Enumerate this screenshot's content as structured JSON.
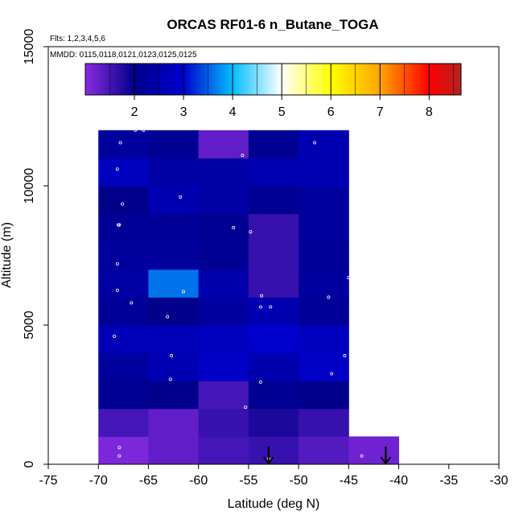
{
  "chart_data": {
    "type": "heatmap",
    "title": "ORCAS RF01-6 n_Butane_TOGA",
    "subtitle_lines": [
      "Flts: 1,2,3,4,5,6",
      "MMDD: 0115,0118,0121,0123,0125,0125"
    ],
    "xlabel": "Latitude (deg N)",
    "ylabel": "Altitude (m)",
    "xlim": [
      -75,
      -30
    ],
    "ylim": [
      0,
      15000
    ],
    "xticks": [
      -75,
      -70,
      -65,
      -60,
      -55,
      -50,
      -45,
      -40,
      -35,
      -30
    ],
    "yticks": [
      0,
      5000,
      10000,
      15000
    ],
    "grid": false,
    "colorbar": {
      "range": [
        1.0,
        8.65
      ],
      "ticks": [
        2,
        3,
        4,
        5,
        6,
        7,
        8
      ],
      "segment_values": [
        1.0,
        2.0,
        3.0,
        4.0,
        5.0,
        6.0,
        7.0,
        8.0,
        8.65
      ],
      "segment_colors": [
        "#8a2be2",
        "#00008b",
        "#0000cd",
        "#00bfff",
        "#ffffff",
        "#ffff00",
        "#ffa500",
        "#ff0000",
        "#b22222"
      ]
    },
    "bins": {
      "lat_edges": [
        -70,
        -65,
        -60,
        -55,
        -50,
        -45,
        -40
      ],
      "alt_edges": [
        0,
        1000,
        2000,
        3000,
        4000,
        5000,
        6000,
        7000,
        8000,
        9000,
        10000,
        11000,
        12000
      ],
      "values": [
        [
          1.1,
          1.3,
          1.5,
          1.6,
          1.4,
          1.2
        ],
        [
          1.5,
          1.3,
          1.6,
          1.8,
          1.6,
          null
        ],
        [
          2.1,
          2.0,
          1.5,
          2.1,
          2.0,
          null
        ],
        [
          2.3,
          2.6,
          2.9,
          2.5,
          2.9,
          null
        ],
        [
          2.7,
          2.7,
          2.8,
          3.0,
          2.8,
          null
        ],
        [
          2.2,
          2.0,
          2.3,
          2.6,
          2.2,
          null
        ],
        [
          2.4,
          3.6,
          2.5,
          1.6,
          2.3,
          null
        ],
        [
          2.3,
          2.3,
          2.1,
          1.6,
          2.2,
          null
        ],
        [
          2.2,
          2.2,
          2.1,
          1.6,
          2.3,
          null
        ],
        [
          2.0,
          2.6,
          2.4,
          2.1,
          2.3,
          null
        ],
        [
          2.8,
          2.4,
          2.4,
          2.6,
          2.6,
          null
        ],
        [
          2.3,
          2.1,
          1.3,
          2.1,
          2.6,
          null
        ]
      ]
    },
    "arrows_at_lat": [
      -53.0,
      -41.3
    ],
    "sample_points": [
      {
        "lat": -67.9,
        "alt": 300
      },
      {
        "lat": -67.9,
        "alt": 600
      },
      {
        "lat": -53.0,
        "alt": 200
      },
      {
        "lat": -43.7,
        "alt": 300
      },
      {
        "lat": -55.3,
        "alt": 2050
      },
      {
        "lat": -62.8,
        "alt": 3050
      },
      {
        "lat": -53.8,
        "alt": 2950
      },
      {
        "lat": -46.7,
        "alt": 3250
      },
      {
        "lat": -62.7,
        "alt": 3900
      },
      {
        "lat": -45.4,
        "alt": 3900
      },
      {
        "lat": -68.4,
        "alt": 4600
      },
      {
        "lat": -63.1,
        "alt": 5300
      },
      {
        "lat": -53.8,
        "alt": 5650
      },
      {
        "lat": -52.8,
        "alt": 5650
      },
      {
        "lat": -53.7,
        "alt": 6050
      },
      {
        "lat": -66.7,
        "alt": 5800
      },
      {
        "lat": -61.5,
        "alt": 6200
      },
      {
        "lat": -68.1,
        "alt": 6250
      },
      {
        "lat": -47.0,
        "alt": 6000
      },
      {
        "lat": -45.0,
        "alt": 6700
      },
      {
        "lat": -68.1,
        "alt": 7200
      },
      {
        "lat": -68.0,
        "alt": 8600
      },
      {
        "lat": -67.9,
        "alt": 8600
      },
      {
        "lat": -56.5,
        "alt": 8500
      },
      {
        "lat": -54.8,
        "alt": 8350
      },
      {
        "lat": -67.6,
        "alt": 9350
      },
      {
        "lat": -61.8,
        "alt": 9600
      },
      {
        "lat": -68.1,
        "alt": 10600
      },
      {
        "lat": -55.6,
        "alt": 11100
      },
      {
        "lat": -67.8,
        "alt": 11550
      },
      {
        "lat": -48.4,
        "alt": 11550
      },
      {
        "lat": -66.3,
        "alt": 12000
      },
      {
        "lat": -65.5,
        "alt": 12000
      }
    ]
  }
}
